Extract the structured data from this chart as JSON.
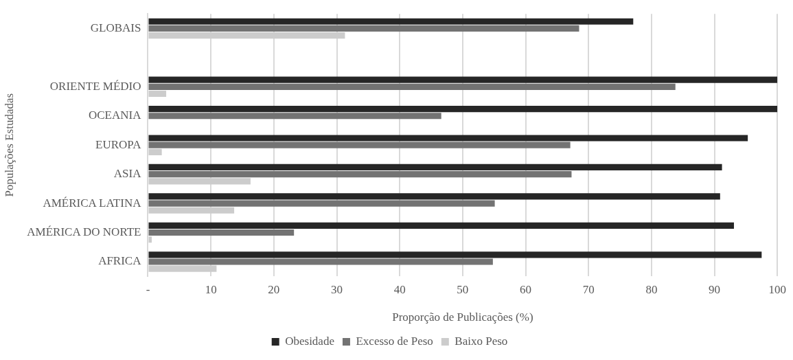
{
  "chart_data": {
    "type": "bar",
    "orientation": "horizontal",
    "xlabel": "Proporção de Publicações (%)",
    "ylabel": "Populações Estudadas",
    "categories": [
      "GLOBAIS",
      null,
      "ORIENTE MÉDIO",
      "OCEANIA",
      "EUROPA",
      "ASIA",
      "AMÉRICA LATINA",
      "AMÉRICA DO NORTE",
      "AFRICA"
    ],
    "series": [
      {
        "name": "Obesidade",
        "color": "#262626",
        "values": [
          77.1,
          null,
          100,
          100,
          95.3,
          91.2,
          90.9,
          93.1,
          97.5
        ]
      },
      {
        "name": "Excesso de Peso",
        "color": "#737373",
        "values": [
          68.5,
          null,
          83.8,
          46.6,
          67.1,
          67.3,
          55.1,
          23.2,
          54.8
        ]
      },
      {
        "name": "Baixo Peso",
        "color": "#cccccc",
        "values": [
          31.3,
          null,
          2.9,
          null,
          2.2,
          16.3,
          13.7,
          0.6,
          10.9
        ]
      }
    ],
    "xlim": [
      0,
      100
    ],
    "xticks": [
      {
        "value": 0,
        "label": "-"
      },
      10,
      20,
      30,
      40,
      50,
      60,
      70,
      80,
      90,
      100
    ],
    "grid": "x",
    "legend": "bottom"
  }
}
